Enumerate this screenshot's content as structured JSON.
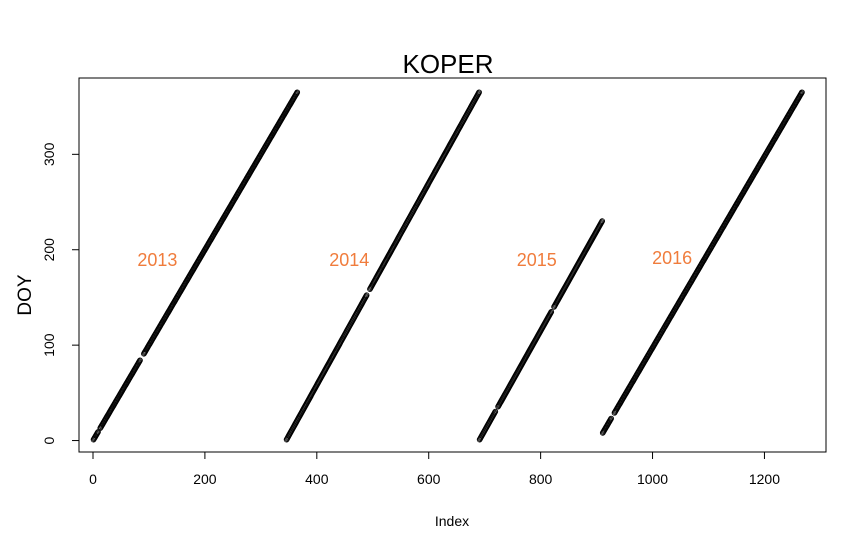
{
  "chart_data": {
    "type": "scatter",
    "title": "KOPER",
    "xlabel": "Index",
    "ylabel": "DOY",
    "xlim": [
      -25,
      1310
    ],
    "ylim": [
      -12,
      380
    ],
    "x_ticks": [
      0,
      200,
      400,
      600,
      800,
      1000,
      1200
    ],
    "y_ticks": [
      0,
      100,
      200,
      300
    ],
    "marker": "open-circle",
    "marker_color": "#000000",
    "grid": false,
    "series": [
      {
        "segments": [
          {
            "x_start": 1,
            "x_end": 365,
            "y_start": 1,
            "y_end": 365,
            "gaps": [
              {
                "x_from": 10,
                "x_to": 12
              },
              {
                "x_from": 85,
                "x_to": 90
              }
            ]
          },
          {
            "x_start": 346,
            "x_end": 690,
            "y_start": 1,
            "y_end": 365,
            "gaps": [
              {
                "x_from": 490,
                "x_to": 494
              }
            ]
          },
          {
            "x_start": 691,
            "x_end": 910,
            "y_start": 1,
            "y_end": 230,
            "gaps": [
              {
                "x_from": 720,
                "x_to": 723
              },
              {
                "x_from": 820,
                "x_to": 823
              }
            ]
          },
          {
            "x_start": 911,
            "x_end": 1267,
            "y_start": 8,
            "y_end": 365,
            "gaps": [
              {
                "x_from": 927,
                "x_to": 931
              }
            ]
          }
        ]
      }
    ],
    "annotations": [
      {
        "text": "2013",
        "x": 115,
        "y": 183,
        "color": "#F07C3C"
      },
      {
        "text": "2014",
        "x": 458,
        "y": 183,
        "color": "#F07C3C"
      },
      {
        "text": "2015",
        "x": 793,
        "y": 183,
        "color": "#F07C3C"
      },
      {
        "text": "2016",
        "x": 1035,
        "y": 185,
        "color": "#F07C3C"
      }
    ]
  }
}
